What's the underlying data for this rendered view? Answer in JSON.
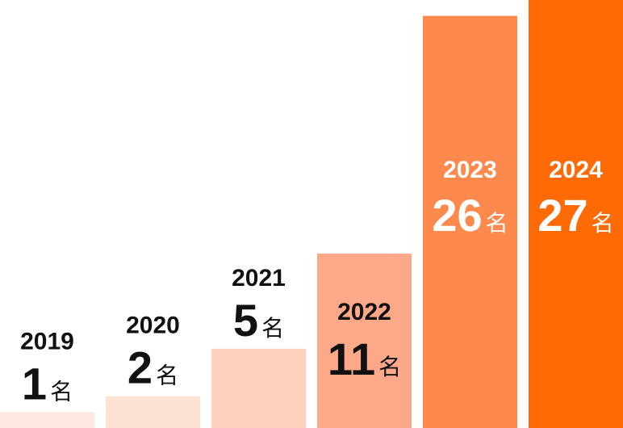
{
  "chart_data": {
    "type": "bar",
    "categories": [
      "2019",
      "2020",
      "2021",
      "2022",
      "2023",
      "2024"
    ],
    "values": [
      1,
      2,
      5,
      11,
      26,
      27
    ],
    "unit": "名",
    "colors": [
      "#fde9df",
      "#fde1d3",
      "#fdd2bf",
      "#fca98a",
      "#fd8a4c",
      "#fe6a05"
    ],
    "label_colors": [
      "#111111",
      "#111111",
      "#111111",
      "#111111",
      "#ffffff",
      "#ffffff"
    ],
    "label_placement": [
      "above",
      "above",
      "above",
      "inside",
      "inside",
      "inside"
    ],
    "ylim": [
      0,
      27
    ],
    "grid": false,
    "legend": "none"
  }
}
